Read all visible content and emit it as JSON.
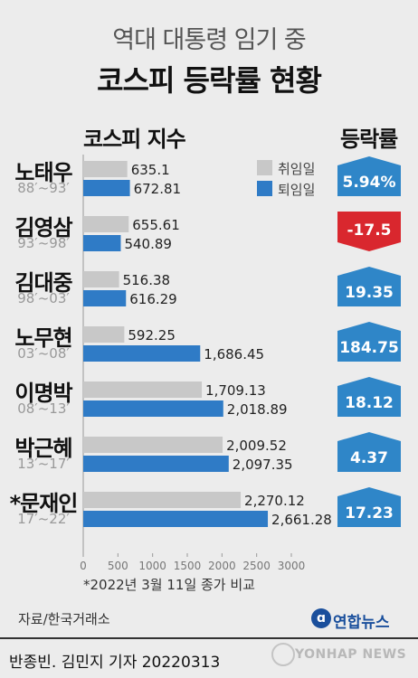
{
  "header": {
    "subtitle": "역대 대통령 임기 중",
    "title": "코스피 등락률 현황"
  },
  "columns": {
    "index_label": "코스피 지수",
    "rate_label": "등락률"
  },
  "legend": {
    "inauguration": "취임일",
    "resignation": "퇴임일"
  },
  "colors": {
    "inauguration_bar": "#c8c8c8",
    "resignation_bar": "#2f7bc6",
    "rise_badge": "#2f86c8",
    "fall_badge": "#d9272e"
  },
  "presidents": [
    {
      "name": "노태우",
      "years": "88′~93′"
    },
    {
      "name": "김영삼",
      "years": "93′~98′"
    },
    {
      "name": "김대중",
      "years": "98′~03′"
    },
    {
      "name": "노무현",
      "years": "03′~08′"
    },
    {
      "name": "이명박",
      "years": "08′~13′"
    },
    {
      "name": "박근혜",
      "years": "13′~17′"
    },
    {
      "name": "*문재인",
      "years": "17′~22′"
    }
  ],
  "chart_data": {
    "type": "bar",
    "orientation": "horizontal",
    "categories": [
      "노태우",
      "김영삼",
      "김대중",
      "노무현",
      "이명박",
      "박근혜",
      "*문재인"
    ],
    "series": [
      {
        "name": "취임일",
        "values": [
          635.1,
          655.61,
          516.38,
          592.25,
          1709.13,
          2009.52,
          2270.12
        ],
        "labels": [
          "635.1",
          "655.61",
          "516.38",
          "592.25",
          "1,709.13",
          "2,009.52",
          "2,270.12"
        ]
      },
      {
        "name": "퇴임일",
        "values": [
          672.81,
          540.89,
          616.29,
          1686.45,
          2018.89,
          2097.35,
          2661.28
        ],
        "labels": [
          "672.81",
          "540.89",
          "616.29",
          "1,686.45",
          "2,018.89",
          "2,097.35",
          "2,661.28"
        ]
      }
    ],
    "change_rate": {
      "values": [
        5.94,
        -17.5,
        19.35,
        184.75,
        18.12,
        4.37,
        17.23
      ],
      "labels": [
        "5.94%",
        "-17.5",
        "19.35",
        "184.75",
        "18.12",
        "4.37",
        "17.23"
      ]
    },
    "xlim": [
      0,
      3000
    ],
    "xticks": [
      0,
      500,
      1000,
      1500,
      2000,
      2500,
      3000
    ],
    "xticklabels": [
      "0",
      "500",
      "1000",
      "1500",
      "2000",
      "2500",
      "3000"
    ],
    "title": "코스피 등락률 현황"
  },
  "footnote": "*2022년 3월 11일 종가 비교",
  "source": "자료/한국거래소",
  "logo": {
    "text": "연합뉴스",
    "mark": "ɑ"
  },
  "credit": "반종빈. 김민지 기자  20220313",
  "watermark": "YONHAP NEWS"
}
